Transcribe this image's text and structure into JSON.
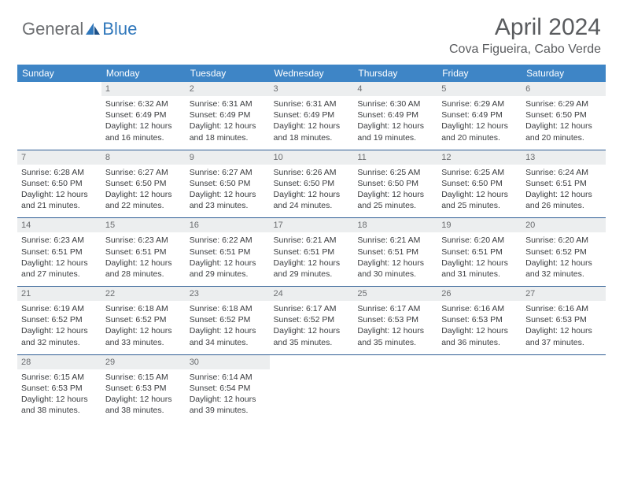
{
  "logo": {
    "text1": "General",
    "text2": "Blue"
  },
  "title": "April 2024",
  "location": "Cova Figueira, Cabo Verde",
  "colors": {
    "header_bg": "#3e85c6",
    "header_text": "#ffffff",
    "daynum_bg": "#eceeef",
    "daynum_text": "#6a6c6f",
    "body_text": "#3a3c3f",
    "title_text": "#5a5c5f",
    "row_border": "#2f5e95",
    "logo_gray": "#6d6f72",
    "logo_blue": "#2f77bb"
  },
  "weekdays": [
    "Sunday",
    "Monday",
    "Tuesday",
    "Wednesday",
    "Thursday",
    "Friday",
    "Saturday"
  ],
  "weeks": [
    [
      {
        "empty": true
      },
      {
        "n": "1",
        "sr": "6:32 AM",
        "ss": "6:49 PM",
        "dl": "12 hours and 16 minutes."
      },
      {
        "n": "2",
        "sr": "6:31 AM",
        "ss": "6:49 PM",
        "dl": "12 hours and 18 minutes."
      },
      {
        "n": "3",
        "sr": "6:31 AM",
        "ss": "6:49 PM",
        "dl": "12 hours and 18 minutes."
      },
      {
        "n": "4",
        "sr": "6:30 AM",
        "ss": "6:49 PM",
        "dl": "12 hours and 19 minutes."
      },
      {
        "n": "5",
        "sr": "6:29 AM",
        "ss": "6:49 PM",
        "dl": "12 hours and 20 minutes."
      },
      {
        "n": "6",
        "sr": "6:29 AM",
        "ss": "6:50 PM",
        "dl": "12 hours and 20 minutes."
      }
    ],
    [
      {
        "n": "7",
        "sr": "6:28 AM",
        "ss": "6:50 PM",
        "dl": "12 hours and 21 minutes."
      },
      {
        "n": "8",
        "sr": "6:27 AM",
        "ss": "6:50 PM",
        "dl": "12 hours and 22 minutes."
      },
      {
        "n": "9",
        "sr": "6:27 AM",
        "ss": "6:50 PM",
        "dl": "12 hours and 23 minutes."
      },
      {
        "n": "10",
        "sr": "6:26 AM",
        "ss": "6:50 PM",
        "dl": "12 hours and 24 minutes."
      },
      {
        "n": "11",
        "sr": "6:25 AM",
        "ss": "6:50 PM",
        "dl": "12 hours and 25 minutes."
      },
      {
        "n": "12",
        "sr": "6:25 AM",
        "ss": "6:50 PM",
        "dl": "12 hours and 25 minutes."
      },
      {
        "n": "13",
        "sr": "6:24 AM",
        "ss": "6:51 PM",
        "dl": "12 hours and 26 minutes."
      }
    ],
    [
      {
        "n": "14",
        "sr": "6:23 AM",
        "ss": "6:51 PM",
        "dl": "12 hours and 27 minutes."
      },
      {
        "n": "15",
        "sr": "6:23 AM",
        "ss": "6:51 PM",
        "dl": "12 hours and 28 minutes."
      },
      {
        "n": "16",
        "sr": "6:22 AM",
        "ss": "6:51 PM",
        "dl": "12 hours and 29 minutes."
      },
      {
        "n": "17",
        "sr": "6:21 AM",
        "ss": "6:51 PM",
        "dl": "12 hours and 29 minutes."
      },
      {
        "n": "18",
        "sr": "6:21 AM",
        "ss": "6:51 PM",
        "dl": "12 hours and 30 minutes."
      },
      {
        "n": "19",
        "sr": "6:20 AM",
        "ss": "6:51 PM",
        "dl": "12 hours and 31 minutes."
      },
      {
        "n": "20",
        "sr": "6:20 AM",
        "ss": "6:52 PM",
        "dl": "12 hours and 32 minutes."
      }
    ],
    [
      {
        "n": "21",
        "sr": "6:19 AM",
        "ss": "6:52 PM",
        "dl": "12 hours and 32 minutes."
      },
      {
        "n": "22",
        "sr": "6:18 AM",
        "ss": "6:52 PM",
        "dl": "12 hours and 33 minutes."
      },
      {
        "n": "23",
        "sr": "6:18 AM",
        "ss": "6:52 PM",
        "dl": "12 hours and 34 minutes."
      },
      {
        "n": "24",
        "sr": "6:17 AM",
        "ss": "6:52 PM",
        "dl": "12 hours and 35 minutes."
      },
      {
        "n": "25",
        "sr": "6:17 AM",
        "ss": "6:53 PM",
        "dl": "12 hours and 35 minutes."
      },
      {
        "n": "26",
        "sr": "6:16 AM",
        "ss": "6:53 PM",
        "dl": "12 hours and 36 minutes."
      },
      {
        "n": "27",
        "sr": "6:16 AM",
        "ss": "6:53 PM",
        "dl": "12 hours and 37 minutes."
      }
    ],
    [
      {
        "n": "28",
        "sr": "6:15 AM",
        "ss": "6:53 PM",
        "dl": "12 hours and 38 minutes."
      },
      {
        "n": "29",
        "sr": "6:15 AM",
        "ss": "6:53 PM",
        "dl": "12 hours and 38 minutes."
      },
      {
        "n": "30",
        "sr": "6:14 AM",
        "ss": "6:54 PM",
        "dl": "12 hours and 39 minutes."
      },
      {
        "empty": true
      },
      {
        "empty": true
      },
      {
        "empty": true
      },
      {
        "empty": true
      }
    ]
  ],
  "labels": {
    "sunrise": "Sunrise:",
    "sunset": "Sunset:",
    "daylight": "Daylight:"
  }
}
